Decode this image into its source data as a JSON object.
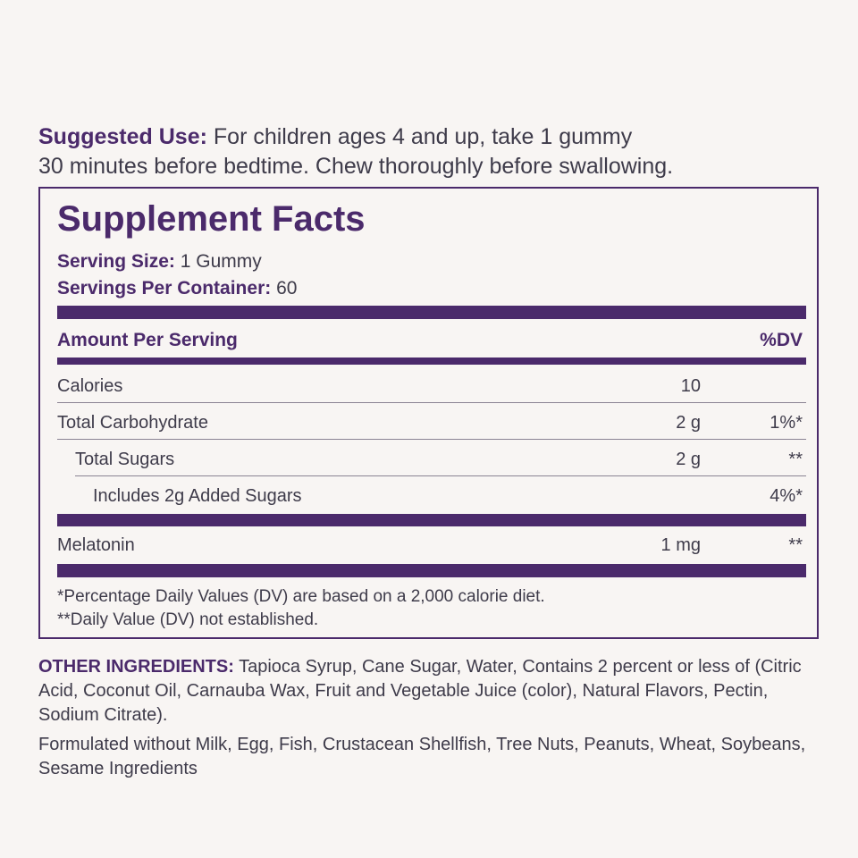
{
  "suggested_use": {
    "label": "Suggested Use:",
    "line1": "For children ages 4 and up, take 1 gummy",
    "line2": "30 minutes before bedtime. Chew thoroughly before swallowing."
  },
  "facts": {
    "title": "Supplement Facts",
    "serving_size_label": "Serving Size:",
    "serving_size_value": "1 Gummy",
    "servings_per_container_label": "Servings Per Container:",
    "servings_per_container_value": "60",
    "header_amount": "Amount Per Serving",
    "header_dv": "%DV",
    "rows": [
      {
        "name": "Calories",
        "amount": "10",
        "dv": ""
      },
      {
        "name": "Total Carbohydrate",
        "amount": "2 g",
        "dv": "1%*"
      },
      {
        "name": "Total Sugars",
        "amount": "2 g",
        "dv": "**"
      },
      {
        "name": "Includes 2g Added Sugars",
        "amount": "",
        "dv": "4%*"
      },
      {
        "name": "Melatonin",
        "amount": "1 mg",
        "dv": "**"
      }
    ],
    "footnote1": "*Percentage Daily Values (DV) are based on a 2,000 calorie diet.",
    "footnote2": "**Daily Value (DV) not established."
  },
  "other_ingredients": {
    "label": "OTHER INGREDIENTS:",
    "text": "Tapioca Syrup, Cane Sugar, Water, Contains 2 percent or less of (Citric Acid, Coconut Oil, Carnauba Wax, Fruit and Vegetable Juice (color), Natural Flavors, Pectin, Sodium Citrate)."
  },
  "formulated": "Formulated without Milk, Egg, Fish, Crustacean Shellfish, Tree Nuts, Peanuts, Wheat, Soybeans, Sesame Ingredients",
  "colors": {
    "accent": "#4b2a6b",
    "background": "#f8f5f3",
    "text": "#3e3b4a"
  }
}
